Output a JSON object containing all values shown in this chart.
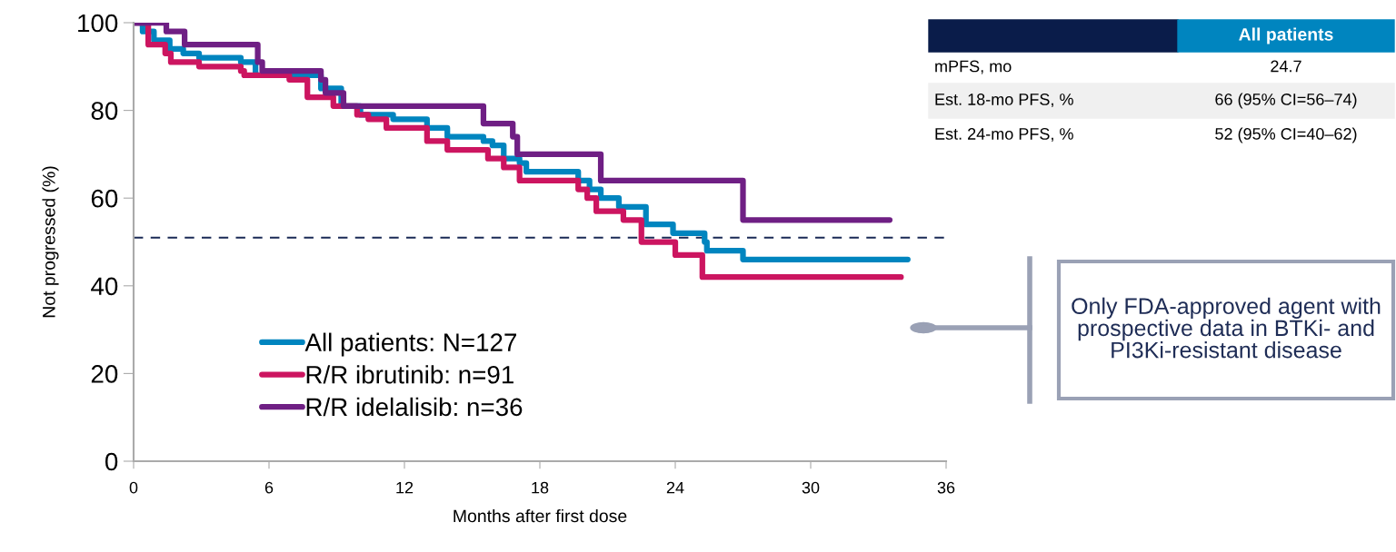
{
  "chart_data": {
    "type": "step",
    "xlabel": "Months after first dose",
    "ylabel": "Not progressed (%)",
    "xlim": [
      0,
      36
    ],
    "ylim": [
      0,
      100
    ],
    "xticks": [
      0,
      6,
      12,
      18,
      24,
      30,
      36
    ],
    "yticks": [
      0,
      20,
      40,
      60,
      80,
      100
    ],
    "grid": false,
    "legend": "bottom left",
    "marker": "none",
    "line_style": "solid",
    "series": [
      {
        "name": "All patients: N=127",
        "color": "#0085bf",
        "x": [
          0,
          0.4,
          0.9,
          1.6,
          2.2,
          2.9,
          4.75,
          5.4,
          8.3,
          9.2,
          10.05,
          11.5,
          13.0,
          13.9,
          15.5,
          15.9,
          16.4,
          17.1,
          17.4,
          19.7,
          20.2,
          20.7,
          21.5,
          22.7,
          23.9,
          25.3,
          25.4,
          27.0,
          34.3
        ],
        "values": [
          100,
          98,
          96,
          94,
          93,
          92,
          91,
          88,
          85,
          81,
          79,
          78,
          76,
          74,
          73,
          72,
          69,
          68,
          66,
          64,
          62,
          60,
          58,
          54,
          52,
          50,
          48,
          46,
          46
        ]
      },
      {
        "name": "R/R ibrutinib: n=91",
        "color": "#cc1560",
        "x": [
          0,
          0.65,
          1.4,
          1.65,
          2.9,
          4.75,
          4.9,
          6.9,
          7.7,
          8.85,
          9.9,
          10.4,
          11.2,
          13.0,
          13.9,
          15.7,
          16.4,
          17.1,
          19.7,
          20.1,
          20.5,
          21.7,
          22.5,
          24.0,
          25.2,
          34.0
        ],
        "values": [
          100,
          95,
          93,
          91,
          90,
          89,
          88,
          87,
          83,
          81,
          79,
          78,
          76,
          73,
          71,
          69,
          67,
          64,
          62,
          60,
          57,
          55,
          50,
          47,
          42,
          42
        ]
      },
      {
        "name": "R/R idelalisib: n=36",
        "color": "#6f1f84",
        "x": [
          0,
          1.45,
          2.26,
          5.5,
          5.7,
          8.3,
          8.5,
          9.3,
          15.5,
          16.8,
          17.0,
          20.7,
          27.0,
          33.5
        ],
        "values": [
          100,
          98,
          95,
          91,
          89,
          87,
          84,
          81,
          77,
          74,
          70,
          64,
          55,
          55
        ]
      }
    ],
    "ref_lines": [
      {
        "axis": "y",
        "value": 51,
        "color": "#1a2a55",
        "line_style": "dashed"
      }
    ],
    "annotations": [
      "All patients",
      "mPFS, mo",
      "24.7",
      "Est. 18-mo PFS, %",
      "66 (95% CI=56–74)",
      "Est. 24-mo PFS, %",
      "52 (95% CI=40–62)",
      "Only FDA-approved agent with prospective data in BTKi- and PI3Ki-resistant disease"
    ]
  }
}
